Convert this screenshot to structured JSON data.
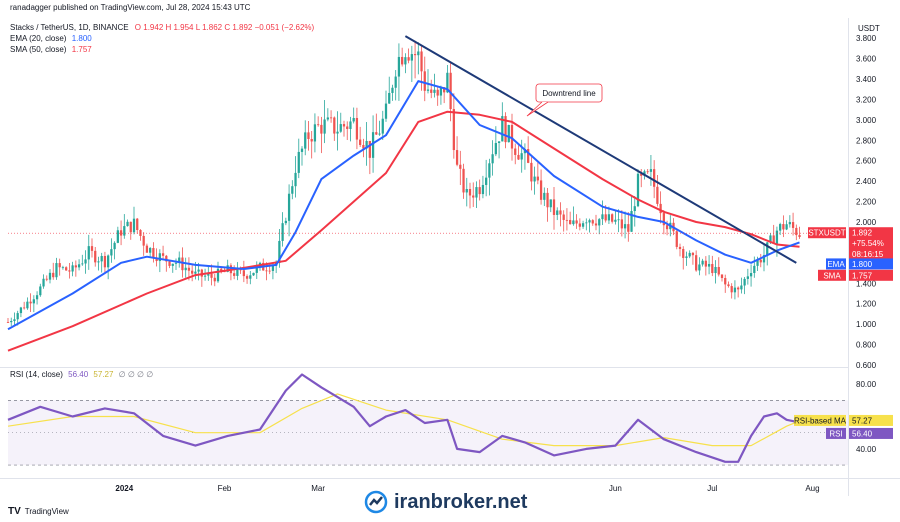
{
  "header": {
    "publisher": "ranadagger published on TradingView.com, Jul 28, 2024 15:43 UTC",
    "symbol": "Stacks / TetherUS, 1D, BINANCE",
    "ohlc": "O 1.942  H 1.954  L 1.862  C 1.892  −0.051 (−2.62%)",
    "ema_label": "EMA (20, close)",
    "ema_value": "1.800",
    "sma_label": "SMA (50, close)",
    "sma_value": "1.757"
  },
  "rsi_header": {
    "label": "RSI (14, close)",
    "value": "56.40",
    "ma_value": "57.27",
    "extra": "∅ ∅ ∅ ∅"
  },
  "unit": "USDT",
  "annotation": "Downtrend line",
  "badges": {
    "price": {
      "label": "STXUSDT",
      "value": "1.892",
      "change": "+75.54%",
      "countdown": "08:16:15",
      "color": "#f23645"
    },
    "ema": {
      "label": "EMA",
      "value": "1.800",
      "color": "#2962ff"
    },
    "sma": {
      "label": "SMA",
      "value": "1.757",
      "color": "#f23645"
    },
    "rsi_ma": {
      "label": "RSI-based MA",
      "value": "57.27",
      "color": "#f7e14c"
    },
    "rsi": {
      "label": "RSI",
      "value": "56.40",
      "color": "#7e57c2"
    }
  },
  "footer": {
    "tv": "TradingView",
    "brand": "iranbroker.net"
  },
  "colors": {
    "up": "#26a69a",
    "down": "#ef5350",
    "ema": "#2962ff",
    "sma": "#f23645",
    "trend": "#1e3a78",
    "rsi": "#7e57c2",
    "rsi_ma": "#f7e14c"
  },
  "chart_data": {
    "type": "candlestick",
    "price_axis": {
      "ticks": [
        0.6,
        0.8,
        1.0,
        1.2,
        1.4,
        1.6,
        1.8,
        2.0,
        2.2,
        2.4,
        2.6,
        2.8,
        3.0,
        3.2,
        3.4,
        3.6,
        3.8
      ],
      "range": [
        0.58,
        3.88
      ]
    },
    "rsi_axis": {
      "ticks": [
        40,
        80
      ],
      "band": [
        30,
        70
      ],
      "range": [
        22,
        90
      ]
    },
    "time_axis": {
      "labels": [
        "2024",
        "Feb",
        "Mar",
        "Jun",
        "Jul",
        "Aug"
      ],
      "label_dates": [
        "2024-01-01",
        "2024-02-01",
        "2024-03-01",
        "2024-06-01",
        "2024-07-01",
        "2024-08-01"
      ],
      "range": [
        "2023-11-26",
        "2024-08-12"
      ]
    },
    "close_points": [
      [
        "2023-11-26",
        1.02
      ],
      [
        "2023-12-01",
        1.18
      ],
      [
        "2023-12-06",
        1.35
      ],
      [
        "2023-12-11",
        1.55
      ],
      [
        "2023-12-16",
        1.52
      ],
      [
        "2023-12-21",
        1.7
      ],
      [
        "2023-12-26",
        1.62
      ],
      [
        "2023-12-31",
        1.92
      ],
      [
        "2024-01-04",
        1.98
      ],
      [
        "2024-01-08",
        1.75
      ],
      [
        "2024-01-13",
        1.64
      ],
      [
        "2024-01-18",
        1.6
      ],
      [
        "2024-01-23",
        1.48
      ],
      [
        "2024-01-28",
        1.46
      ],
      [
        "2024-02-02",
        1.52
      ],
      [
        "2024-02-07",
        1.48
      ],
      [
        "2024-02-12",
        1.55
      ],
      [
        "2024-02-17",
        1.6
      ],
      [
        "2024-02-20",
        2.08
      ],
      [
        "2024-02-23",
        2.55
      ],
      [
        "2024-02-27",
        2.85
      ],
      [
        "2024-03-02",
        2.95
      ],
      [
        "2024-03-07",
        2.92
      ],
      [
        "2024-03-12",
        2.98
      ],
      [
        "2024-03-17",
        2.7
      ],
      [
        "2024-03-22",
        3.05
      ],
      [
        "2024-03-25",
        3.55
      ],
      [
        "2024-03-28",
        3.72
      ],
      [
        "2024-04-01",
        3.62
      ],
      [
        "2024-04-03",
        3.35
      ],
      [
        "2024-04-07",
        3.18
      ],
      [
        "2024-04-10",
        3.4
      ],
      [
        "2024-04-13",
        2.52
      ],
      [
        "2024-04-16",
        2.25
      ],
      [
        "2024-04-20",
        2.35
      ],
      [
        "2024-04-24",
        2.72
      ],
      [
        "2024-04-27",
        2.95
      ],
      [
        "2024-04-30",
        2.78
      ],
      [
        "2024-05-04",
        2.62
      ],
      [
        "2024-05-08",
        2.32
      ],
      [
        "2024-05-13",
        2.1
      ],
      [
        "2024-05-18",
        1.95
      ],
      [
        "2024-05-23",
        2.05
      ],
      [
        "2024-05-28",
        2.02
      ],
      [
        "2024-06-01",
        2.0
      ],
      [
        "2024-06-05",
        1.92
      ],
      [
        "2024-06-08",
        2.38
      ],
      [
        "2024-06-12",
        2.45
      ],
      [
        "2024-06-16",
        2.05
      ],
      [
        "2024-06-21",
        1.75
      ],
      [
        "2024-06-26",
        1.58
      ],
      [
        "2024-07-01",
        1.55
      ],
      [
        "2024-07-05",
        1.38
      ],
      [
        "2024-07-09",
        1.32
      ],
      [
        "2024-07-13",
        1.55
      ],
      [
        "2024-07-17",
        1.68
      ],
      [
        "2024-07-21",
        1.92
      ],
      [
        "2024-07-24",
        1.98
      ],
      [
        "2024-07-28",
        1.89
      ]
    ],
    "ema20": [
      [
        "2023-11-26",
        0.95
      ],
      [
        "2023-12-16",
        1.3
      ],
      [
        "2023-12-31",
        1.6
      ],
      [
        "2024-01-08",
        1.66
      ],
      [
        "2024-01-23",
        1.58
      ],
      [
        "2024-02-07",
        1.54
      ],
      [
        "2024-02-17",
        1.58
      ],
      [
        "2024-02-23",
        1.9
      ],
      [
        "2024-03-02",
        2.42
      ],
      [
        "2024-03-12",
        2.65
      ],
      [
        "2024-03-22",
        2.85
      ],
      [
        "2024-04-01",
        3.38
      ],
      [
        "2024-04-10",
        3.3
      ],
      [
        "2024-04-20",
        2.95
      ],
      [
        "2024-04-30",
        2.82
      ],
      [
        "2024-05-13",
        2.45
      ],
      [
        "2024-05-28",
        2.15
      ],
      [
        "2024-06-08",
        2.05
      ],
      [
        "2024-06-16",
        2.0
      ],
      [
        "2024-06-26",
        1.82
      ],
      [
        "2024-07-05",
        1.68
      ],
      [
        "2024-07-13",
        1.6
      ],
      [
        "2024-07-21",
        1.72
      ],
      [
        "2024-07-28",
        1.8
      ]
    ],
    "sma50": [
      [
        "2023-11-26",
        0.74
      ],
      [
        "2023-12-16",
        0.98
      ],
      [
        "2024-01-08",
        1.3
      ],
      [
        "2024-01-23",
        1.48
      ],
      [
        "2024-02-07",
        1.55
      ],
      [
        "2024-02-20",
        1.62
      ],
      [
        "2024-03-02",
        1.92
      ],
      [
        "2024-03-12",
        2.2
      ],
      [
        "2024-03-22",
        2.48
      ],
      [
        "2024-04-01",
        2.98
      ],
      [
        "2024-04-10",
        3.08
      ],
      [
        "2024-04-20",
        3.05
      ],
      [
        "2024-04-30",
        2.98
      ],
      [
        "2024-05-13",
        2.72
      ],
      [
        "2024-05-28",
        2.42
      ],
      [
        "2024-06-08",
        2.22
      ],
      [
        "2024-06-16",
        2.1
      ],
      [
        "2024-06-26",
        2.0
      ],
      [
        "2024-07-05",
        1.95
      ],
      [
        "2024-07-13",
        1.88
      ],
      [
        "2024-07-21",
        1.78
      ],
      [
        "2024-07-28",
        1.757
      ]
    ],
    "trendline": [
      [
        "2024-03-28",
        3.82
      ],
      [
        "2024-07-27",
        1.6
      ]
    ],
    "rsi": [
      [
        "2023-11-26",
        58
      ],
      [
        "2023-12-06",
        66
      ],
      [
        "2023-12-16",
        60
      ],
      [
        "2023-12-26",
        65
      ],
      [
        "2024-01-04",
        62
      ],
      [
        "2024-01-13",
        48
      ],
      [
        "2024-01-23",
        42
      ],
      [
        "2024-02-02",
        48
      ],
      [
        "2024-02-12",
        52
      ],
      [
        "2024-02-20",
        76
      ],
      [
        "2024-02-25",
        86
      ],
      [
        "2024-03-02",
        78
      ],
      [
        "2024-03-07",
        72
      ],
      [
        "2024-03-12",
        66
      ],
      [
        "2024-03-17",
        54
      ],
      [
        "2024-03-22",
        60
      ],
      [
        "2024-03-28",
        64
      ],
      [
        "2024-04-03",
        56
      ],
      [
        "2024-04-10",
        58
      ],
      [
        "2024-04-13",
        40
      ],
      [
        "2024-04-20",
        38
      ],
      [
        "2024-04-27",
        48
      ],
      [
        "2024-05-04",
        44
      ],
      [
        "2024-05-13",
        36
      ],
      [
        "2024-05-23",
        40
      ],
      [
        "2024-06-01",
        42
      ],
      [
        "2024-06-08",
        58
      ],
      [
        "2024-06-16",
        46
      ],
      [
        "2024-06-26",
        38
      ],
      [
        "2024-07-05",
        32
      ],
      [
        "2024-07-09",
        32
      ],
      [
        "2024-07-13",
        48
      ],
      [
        "2024-07-17",
        60
      ],
      [
        "2024-07-21",
        62
      ],
      [
        "2024-07-24",
        58
      ],
      [
        "2024-07-28",
        56.4
      ]
    ],
    "rsi_ma": [
      [
        "2023-11-26",
        54
      ],
      [
        "2023-12-16",
        60
      ],
      [
        "2024-01-04",
        60
      ],
      [
        "2024-01-23",
        50
      ],
      [
        "2024-02-12",
        50
      ],
      [
        "2024-02-25",
        65
      ],
      [
        "2024-03-07",
        74
      ],
      [
        "2024-03-22",
        64
      ],
      [
        "2024-04-10",
        58
      ],
      [
        "2024-04-27",
        46
      ],
      [
        "2024-05-13",
        42
      ],
      [
        "2024-06-01",
        42
      ],
      [
        "2024-06-16",
        47
      ],
      [
        "2024-07-01",
        42
      ],
      [
        "2024-07-13",
        42
      ],
      [
        "2024-07-24",
        54
      ],
      [
        "2024-07-28",
        57.27
      ]
    ]
  }
}
